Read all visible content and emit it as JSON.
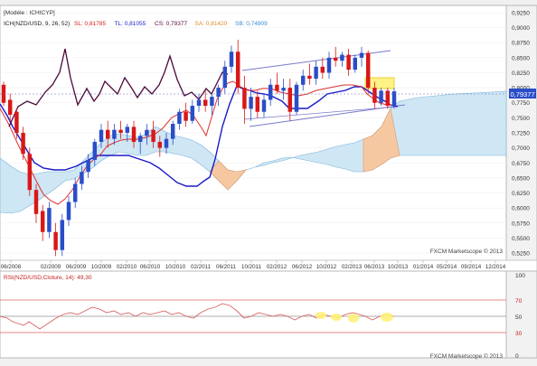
{
  "header": {
    "title": "[Modèle : ICHICYP]",
    "indicator_label": "ICH(NZD/USD, 9, 26, 52)",
    "values": [
      {
        "label": "SL: 0,81785",
        "color": "#d42020"
      },
      {
        "label": "TL: 0,81055",
        "color": "#2020c8"
      },
      {
        "label": "CS: 0,79377",
        "color": "#5a0a3a"
      },
      {
        "label": "SA: 0,81420",
        "color": "#e08a2a"
      },
      {
        "label": "SB: 0,74909",
        "color": "#3a8ad0"
      }
    ]
  },
  "watermark": "FXCM Marketscope © 2013",
  "rsi_watermark": "FXCM Marketscope © 2013",
  "colors": {
    "bull": "#2a4ec8",
    "bear": "#d81818",
    "cloud_bull": "#bfe0f2",
    "cloud_bear": "#f6c8a2",
    "kijun": "#1a1ac8",
    "tenkan": "#e03030",
    "chikou": "#4a0a3a",
    "channel": "#7a7ac8",
    "rsi_line": "#d86060",
    "highlight": "#fff27a"
  },
  "chart_data": {
    "type": "candlestick",
    "title": "",
    "y_axis": {
      "min": 0.513,
      "max": 0.937,
      "ticks": [
        "0,9250",
        "0,9000",
        "0,8750",
        "0,8500",
        "0,8250",
        "0,8000",
        "0,7750",
        "0,7500",
        "0,7250",
        "0,7000",
        "0,6750",
        "0,6500",
        "0,6250",
        "0,6000",
        "0,5750",
        "0,5500",
        "0,5250"
      ]
    },
    "x_ticks": [
      "06/2008",
      "02/2009",
      "06/2009",
      "10/2009",
      "02/2010",
      "06/2010",
      "10/2010",
      "02/2011",
      "06/2011",
      "10/2011",
      "02/2012",
      "06/2012",
      "10/2012",
      "02/2013",
      "06/2013",
      "10/2013",
      "01/2014",
      "05/2014",
      "09/2014",
      "12/2014"
    ],
    "last_price": "0,79377",
    "candles": [
      [
        0.805,
        0.81,
        0.77,
        0.775
      ],
      [
        0.78,
        0.79,
        0.745,
        0.755
      ],
      [
        0.76,
        0.765,
        0.715,
        0.725
      ],
      [
        0.725,
        0.735,
        0.68,
        0.69
      ],
      [
        0.69,
        0.7,
        0.62,
        0.63
      ],
      [
        0.63,
        0.64,
        0.575,
        0.59
      ],
      [
        0.595,
        0.605,
        0.545,
        0.56
      ],
      [
        0.56,
        0.61,
        0.55,
        0.6
      ],
      [
        0.56,
        0.575,
        0.52,
        0.53
      ],
      [
        0.53,
        0.59,
        0.52,
        0.58
      ],
      [
        0.58,
        0.62,
        0.57,
        0.61
      ],
      [
        0.61,
        0.65,
        0.6,
        0.64
      ],
      [
        0.64,
        0.67,
        0.63,
        0.66
      ],
      [
        0.66,
        0.69,
        0.65,
        0.68
      ],
      [
        0.68,
        0.715,
        0.67,
        0.71
      ],
      [
        0.71,
        0.74,
        0.7,
        0.73
      ],
      [
        0.73,
        0.745,
        0.7,
        0.715
      ],
      [
        0.715,
        0.74,
        0.705,
        0.73
      ],
      [
        0.73,
        0.745,
        0.715,
        0.725
      ],
      [
        0.725,
        0.74,
        0.71,
        0.735
      ],
      [
        0.735,
        0.745,
        0.7,
        0.71
      ],
      [
        0.71,
        0.725,
        0.69,
        0.72
      ],
      [
        0.72,
        0.74,
        0.705,
        0.73
      ],
      [
        0.73,
        0.745,
        0.7,
        0.71
      ],
      [
        0.71,
        0.72,
        0.685,
        0.7
      ],
      [
        0.7,
        0.725,
        0.69,
        0.715
      ],
      [
        0.715,
        0.745,
        0.705,
        0.74
      ],
      [
        0.74,
        0.765,
        0.73,
        0.76
      ],
      [
        0.76,
        0.775,
        0.735,
        0.745
      ],
      [
        0.745,
        0.78,
        0.74,
        0.77
      ],
      [
        0.77,
        0.79,
        0.76,
        0.78
      ],
      [
        0.78,
        0.795,
        0.76,
        0.77
      ],
      [
        0.77,
        0.79,
        0.755,
        0.785
      ],
      [
        0.785,
        0.805,
        0.77,
        0.8
      ],
      [
        0.8,
        0.845,
        0.79,
        0.835
      ],
      [
        0.835,
        0.87,
        0.825,
        0.86
      ],
      [
        0.86,
        0.88,
        0.79,
        0.8
      ],
      [
        0.8,
        0.82,
        0.74,
        0.765
      ],
      [
        0.765,
        0.8,
        0.745,
        0.785
      ],
      [
        0.785,
        0.795,
        0.75,
        0.76
      ],
      [
        0.76,
        0.79,
        0.75,
        0.78
      ],
      [
        0.78,
        0.815,
        0.77,
        0.805
      ],
      [
        0.805,
        0.825,
        0.79,
        0.795
      ],
      [
        0.795,
        0.815,
        0.78,
        0.8
      ],
      [
        0.8,
        0.815,
        0.745,
        0.76
      ],
      [
        0.76,
        0.81,
        0.755,
        0.805
      ],
      [
        0.805,
        0.83,
        0.795,
        0.82
      ],
      [
        0.82,
        0.84,
        0.805,
        0.815
      ],
      [
        0.815,
        0.845,
        0.805,
        0.835
      ],
      [
        0.835,
        0.85,
        0.815,
        0.825
      ],
      [
        0.825,
        0.86,
        0.815,
        0.85
      ],
      [
        0.85,
        0.868,
        0.835,
        0.845
      ],
      [
        0.845,
        0.86,
        0.835,
        0.855
      ],
      [
        0.855,
        0.865,
        0.82,
        0.83
      ],
      [
        0.83,
        0.855,
        0.825,
        0.85
      ],
      [
        0.85,
        0.868,
        0.835,
        0.858
      ],
      [
        0.858,
        0.862,
        0.79,
        0.8
      ],
      [
        0.8,
        0.81,
        0.765,
        0.775
      ],
      [
        0.775,
        0.8,
        0.77,
        0.795
      ],
      [
        0.795,
        0.8,
        0.765,
        0.77
      ],
      [
        0.77,
        0.8,
        0.765,
        0.794
      ]
    ]
  }
}
